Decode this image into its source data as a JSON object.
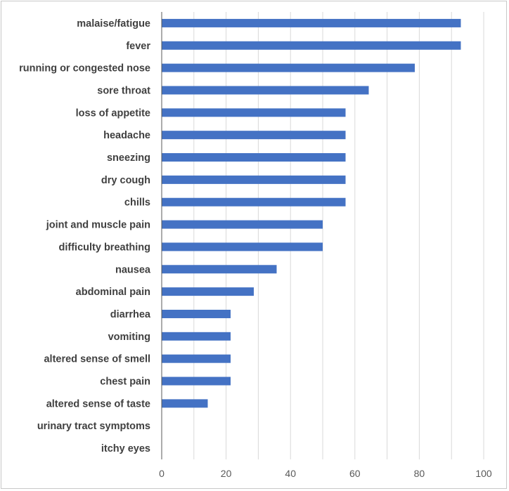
{
  "chart_data": {
    "type": "bar",
    "orientation": "horizontal",
    "title": "",
    "xlabel": "",
    "ylabel": "",
    "categories": [
      "malaise/fatigue",
      "fever",
      "running or congested nose",
      "sore throat",
      "loss of appetite",
      "headache",
      "sneezing",
      "dry cough",
      "chills",
      "joint and muscle pain",
      "difficulty breathing",
      "nausea",
      "abdominal pain",
      "diarrhea",
      "vomiting",
      "altered sense of smell",
      "chest pain",
      "altered sense of taste",
      "urinary tract symptoms",
      "itchy eyes"
    ],
    "values": [
      92.9,
      92.9,
      78.6,
      64.3,
      57.1,
      57.1,
      57.1,
      57.1,
      57.1,
      50.0,
      50.0,
      35.7,
      28.6,
      21.4,
      21.4,
      21.4,
      21.4,
      14.3,
      0,
      0
    ],
    "xlim": [
      0,
      100
    ],
    "xticks": [
      0,
      20,
      40,
      60,
      80,
      100
    ],
    "grid": "vertical",
    "legend": "none",
    "bar_color": "#4472c4",
    "grid_color": "#d9d9d9",
    "axis_color": "#595959"
  }
}
